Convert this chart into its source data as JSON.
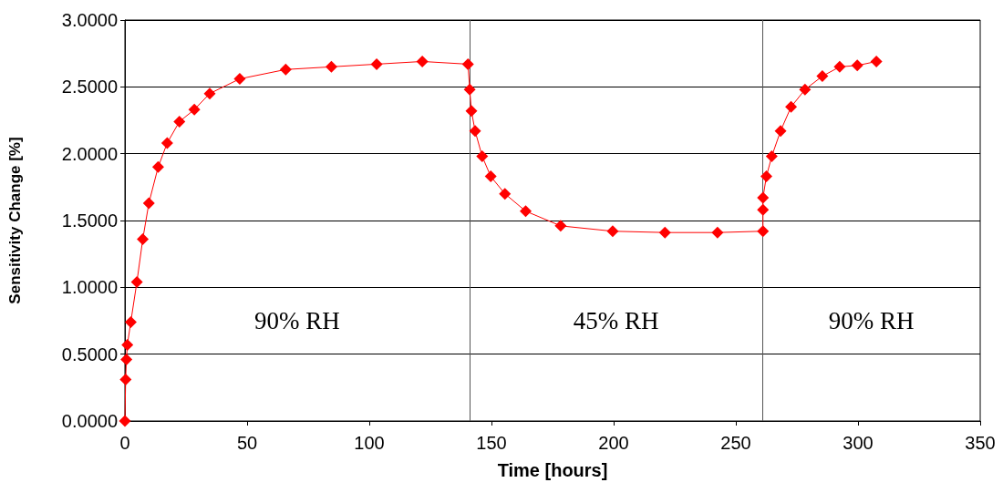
{
  "chart_data": {
    "type": "line",
    "xlabel": "Time [hours]",
    "ylabel": "Sensitivity Change [%]",
    "xlim": [
      0,
      350
    ],
    "xticks": [
      0,
      50,
      100,
      150,
      200,
      250,
      300,
      350
    ],
    "ylim": [
      0,
      3
    ],
    "yticks": [
      {
        "value": 0,
        "label": "0.0000"
      },
      {
        "value": 0.5,
        "label": "0.5000"
      },
      {
        "value": 1,
        "label": "1.0000"
      },
      {
        "value": 1.5,
        "label": "1.5000"
      },
      {
        "value": 2,
        "label": "2.0000"
      },
      {
        "value": 2.5,
        "label": "2.5000"
      },
      {
        "value": 3,
        "label": "3.0000"
      }
    ],
    "grid": "y",
    "marker": "diamond",
    "line_style": "solid",
    "series": [
      {
        "color": "#ff0000",
        "x": [
          0,
          0.3,
          0.6,
          1,
          2.4,
          4.9,
          7.3,
          9.8,
          13.6,
          17.3,
          22.3,
          28.4,
          34.7,
          47,
          65.8,
          84.5,
          103,
          121.7,
          140.4,
          141.1,
          141.8,
          143.3,
          146.2,
          149.7,
          155.5,
          164,
          178.3,
          199.6,
          221,
          242.5,
          261.1,
          261.1,
          261.1,
          262.5,
          264.7,
          268.3,
          272.6,
          278.3,
          285.4,
          292.5,
          299.7,
          307.5
        ],
        "values": [
          0,
          0.31,
          0.46,
          0.57,
          0.74,
          1.04,
          1.36,
          1.63,
          1.9,
          2.08,
          2.24,
          2.33,
          2.45,
          2.56,
          2.63,
          2.65,
          2.67,
          2.69,
          2.67,
          2.48,
          2.32,
          2.17,
          1.98,
          1.83,
          1.7,
          1.57,
          1.46,
          1.42,
          1.41,
          1.41,
          1.42,
          1.58,
          1.67,
          1.83,
          1.98,
          2.17,
          2.35,
          2.48,
          2.58,
          2.65,
          2.66,
          2.69
        ]
      }
    ],
    "ref_lines": [
      {
        "axis": "x",
        "value": 141,
        "color": "#555555"
      },
      {
        "axis": "x",
        "value": 261,
        "color": "#555555"
      }
    ],
    "annotations": [
      "90% RH",
      "45% RH",
      "90% RH"
    ]
  }
}
